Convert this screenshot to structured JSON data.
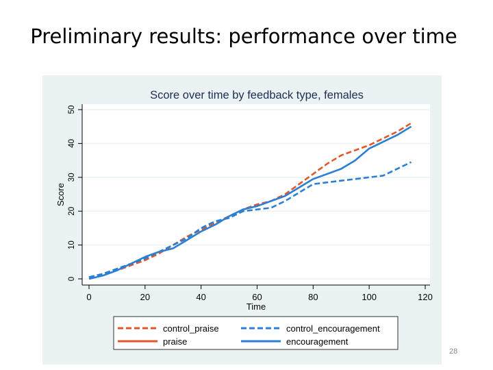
{
  "slide": {
    "title": "Preliminary results: performance over time",
    "page_number": "28"
  },
  "chart_data": {
    "type": "line",
    "title": "Score over time by feedback type, females",
    "xlabel": "Time",
    "ylabel": "Score",
    "xlim": [
      0,
      120
    ],
    "ylim": [
      0,
      50
    ],
    "xticks": [
      0,
      20,
      40,
      60,
      80,
      100,
      120
    ],
    "yticks": [
      0,
      10,
      20,
      30,
      40,
      50
    ],
    "grid": true,
    "legend_position": "bottom",
    "colors": {
      "plot_region_bg": "#eaf2f3",
      "plot_area_bg": "#ffffff",
      "grid": "#eaf2f3",
      "orange": "#e2562a",
      "blue": "#2b7fd4",
      "axis": "#000000",
      "title": "#1e2d4f"
    },
    "series": [
      {
        "name": "control_praise",
        "color": "#e2562a",
        "style": "dashed",
        "x": [
          0,
          5,
          10,
          15,
          20,
          25,
          30,
          35,
          40,
          45,
          50,
          55,
          60,
          65,
          70,
          75,
          80,
          85,
          90,
          95,
          100,
          105,
          110,
          115
        ],
        "y": [
          0.5,
          1.5,
          2.5,
          4,
          5.5,
          7.5,
          10,
          12.5,
          14.5,
          16.5,
          18.5,
          20.5,
          22,
          23,
          25,
          28,
          31,
          34,
          36.5,
          38,
          39.5,
          41.5,
          43.5,
          46
        ]
      },
      {
        "name": "control_encouragement",
        "color": "#2b7fd4",
        "style": "dashed",
        "x": [
          0,
          5,
          10,
          15,
          20,
          25,
          30,
          35,
          40,
          45,
          50,
          55,
          60,
          65,
          70,
          75,
          80,
          85,
          90,
          95,
          100,
          105,
          110,
          115
        ],
        "y": [
          0.5,
          1.5,
          3,
          4.5,
          6,
          8,
          10,
          12,
          15,
          17,
          18,
          20,
          20.5,
          21,
          23,
          25.5,
          28,
          28.5,
          29,
          29.5,
          30,
          30.5,
          32.5,
          34.5
        ]
      },
      {
        "name": "praise",
        "color": "#e2562a",
        "style": "solid",
        "x": [],
        "y": []
      },
      {
        "name": "encouragement",
        "color": "#2b7fd4",
        "style": "solid",
        "x": [
          0,
          5,
          10,
          15,
          20,
          25,
          30,
          35,
          40,
          45,
          50,
          55,
          60,
          65,
          70,
          75,
          80,
          85,
          90,
          95,
          100,
          105,
          110,
          115
        ],
        "y": [
          0,
          1,
          2.5,
          4.5,
          6.5,
          8,
          9,
          11.5,
          14,
          16,
          18.5,
          20.5,
          21.5,
          23,
          24.5,
          27,
          29.5,
          31,
          32.5,
          35,
          38.5,
          40.5,
          42.5,
          45
        ]
      }
    ]
  }
}
